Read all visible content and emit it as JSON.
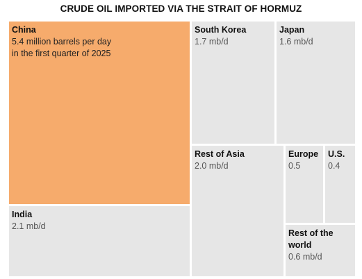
{
  "title": "CRUDE OIL IMPORTED VIA THE STRAIT OF HORMUZ",
  "colors": {
    "highlight": "#f6ab6c",
    "default": "#e6e6e6"
  },
  "chart_data": {
    "type": "treemap",
    "title": "CRUDE OIL IMPORTED VIA THE STRAIT OF HORMUZ",
    "unit": "mb/d",
    "items": [
      {
        "name": "China",
        "value": 5.4,
        "label_lines": [
          "5.4 million barrels per day",
          "in the first quarter of 2025"
        ],
        "highlight": true
      },
      {
        "name": "India",
        "value": 2.1,
        "label_lines": [
          "2.1 mb/d"
        ]
      },
      {
        "name": "South Korea",
        "value": 1.7,
        "label_lines": [
          "1.7 mb/d"
        ]
      },
      {
        "name": "Japan",
        "value": 1.6,
        "label_lines": [
          "1.6 mb/d"
        ]
      },
      {
        "name": "Rest of Asia",
        "value": 2.0,
        "label_lines": [
          "2.0 mb/d"
        ]
      },
      {
        "name": "Europe",
        "value": 0.5,
        "label_lines": [
          "0.5"
        ]
      },
      {
        "name": "U.S.",
        "value": 0.4,
        "label_lines": [
          "0.4"
        ]
      },
      {
        "name": "Rest of the world",
        "value": 0.6,
        "name_lines": [
          "Rest of the",
          "world"
        ],
        "label_lines": [
          "0.6 mb/d"
        ]
      }
    ]
  }
}
